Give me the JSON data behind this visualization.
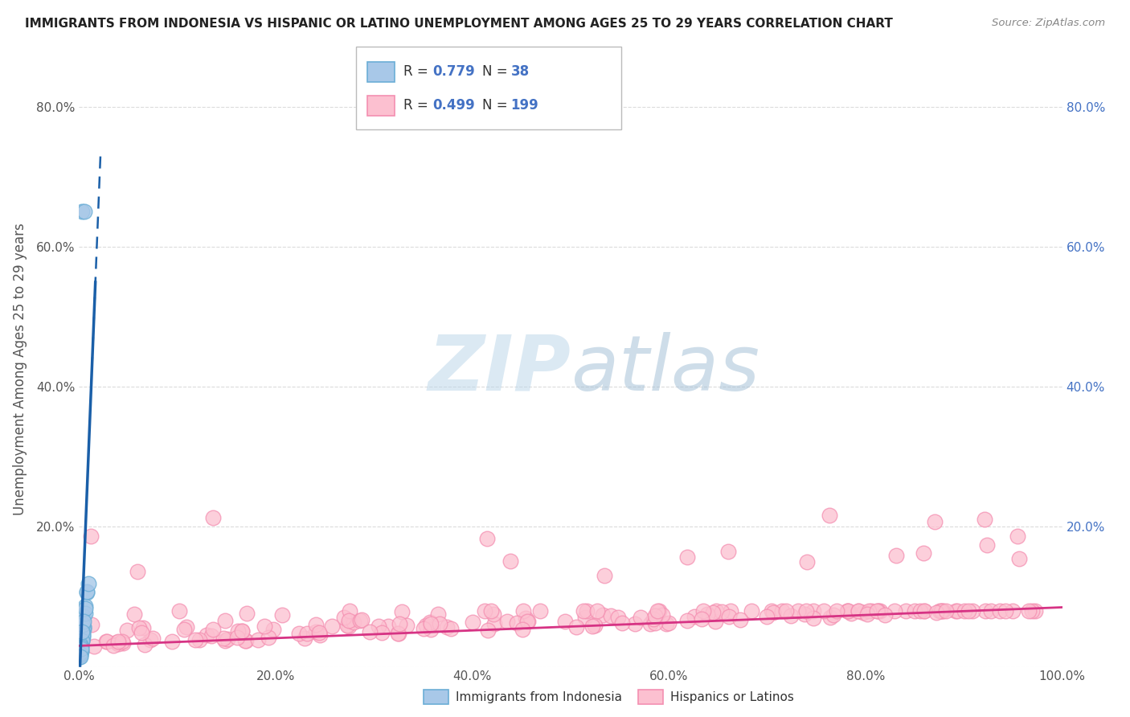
{
  "title": "IMMIGRANTS FROM INDONESIA VS HISPANIC OR LATINO UNEMPLOYMENT AMONG AGES 25 TO 29 YEARS CORRELATION CHART",
  "source": "Source: ZipAtlas.com",
  "ylabel": "Unemployment Among Ages 25 to 29 years",
  "blue_R": 0.779,
  "blue_N": 38,
  "pink_R": 0.499,
  "pink_N": 199,
  "legend1": "Immigrants from Indonesia",
  "legend2": "Hispanics or Latinos",
  "blue_scatter_color": "#a8c8e8",
  "blue_edge_color": "#6baed6",
  "pink_scatter_color": "#fcc0d0",
  "pink_edge_color": "#f48fb1",
  "blue_line_color": "#1a5fa8",
  "pink_line_color": "#d63384",
  "watermark_color": "#d0e4f0",
  "background_color": "#ffffff",
  "grid_color": "#cccccc",
  "title_color": "#222222",
  "source_color": "#888888",
  "axis_tick_color": "#555555",
  "right_tick_color": "#4472c4",
  "xlim": [
    0.0,
    1.0
  ],
  "ylim": [
    0.0,
    0.85
  ],
  "x_ticks": [
    0.0,
    0.2,
    0.4,
    0.6,
    0.8,
    1.0
  ],
  "x_tick_labels": [
    "0.0%",
    "20.0%",
    "40.0%",
    "60.0%",
    "80.0%",
    "100.0%"
  ],
  "y_ticks": [
    0.0,
    0.2,
    0.4,
    0.6,
    0.8
  ],
  "y_tick_labels": [
    "",
    "20.0%",
    "40.0%",
    "60.0%",
    "80.0%"
  ],
  "right_y_ticks": [
    0.2,
    0.4,
    0.6,
    0.8
  ],
  "right_y_tick_labels": [
    "20.0%",
    "40.0%",
    "60.0%",
    "80.0%"
  ]
}
